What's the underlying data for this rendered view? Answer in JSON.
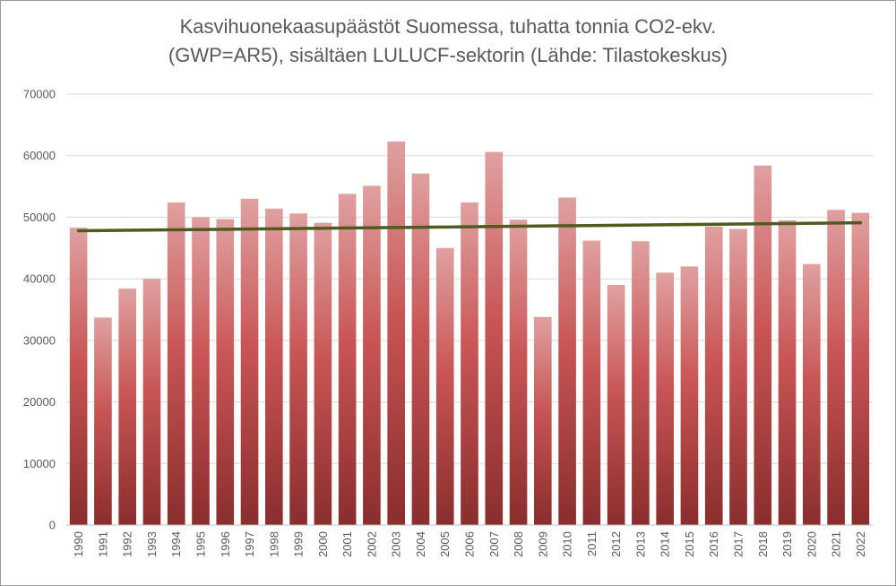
{
  "chart_data": {
    "type": "bar",
    "title_line1": "Kasvihuonekaasupäästöt Suomessa, tuhatta tonnia CO2-ekv.",
    "title_line2": "(GWP=AR5), sisältäen LULUCF-sektorin (Lähde: Tilastokeskus)",
    "xlabel": "",
    "ylabel": "",
    "ylim": [
      0,
      70000
    ],
    "yticks": [
      0,
      10000,
      20000,
      30000,
      40000,
      50000,
      60000,
      70000
    ],
    "grid": true,
    "categories": [
      "1990",
      "1991",
      "1992",
      "1993",
      "1994",
      "1995",
      "1996",
      "1997",
      "1998",
      "1999",
      "2000",
      "2001",
      "2002",
      "2003",
      "2004",
      "2005",
      "2006",
      "2007",
      "2008",
      "2009",
      "2010",
      "2011",
      "2012",
      "2013",
      "2014",
      "2015",
      "2016",
      "2017",
      "2018",
      "2019",
      "2020",
      "2021",
      "2022"
    ],
    "values": [
      48300,
      33700,
      38400,
      40000,
      52400,
      50000,
      49700,
      53000,
      51400,
      50600,
      49100,
      53800,
      55100,
      62300,
      57100,
      45000,
      52400,
      60600,
      49600,
      33800,
      53200,
      46200,
      39000,
      46100,
      41000,
      42000,
      48500,
      48100,
      58400,
      49500,
      42400,
      51200,
      50700
    ],
    "trendline": {
      "start": 47800,
      "end": 49100
    },
    "colors": {
      "bar_top": "#e0a0a0",
      "bar_bottom": "#8a2d2d",
      "trend": "#4e5a1e",
      "grid": "#d9d9d9",
      "axis": "#bfbfbf"
    }
  }
}
